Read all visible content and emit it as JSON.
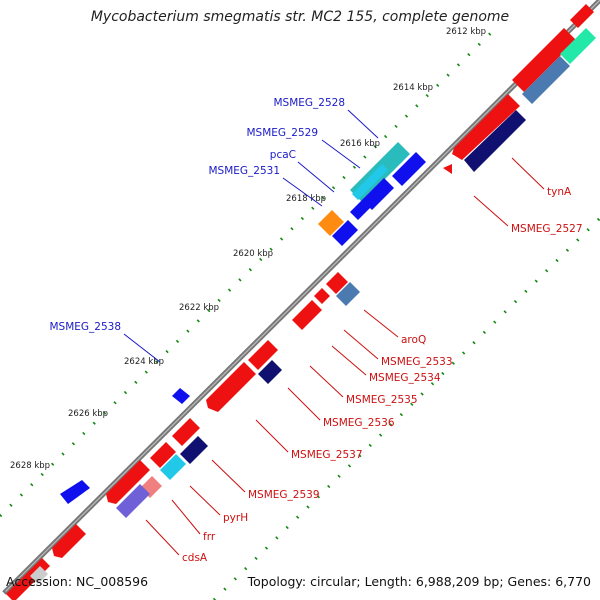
{
  "title": "Mycobacterium smegmatis str. MC2 155, complete genome",
  "accession": "Accession: NC_008596",
  "summary": "Topology: circular; Length: 6,988,209 bp; Genes: 6,770",
  "colors": {
    "backbone": "#7a7a7a",
    "forward_gene": "#ee1111",
    "reverse_gene": "#1010ee",
    "navy": "#101070",
    "steel": "#4a7ab0",
    "cyan": "#22c8e8",
    "teal": "#2abcbc",
    "orange": "#ff8c10",
    "green_tick": "#118811",
    "label_blue": "#1a1ac8",
    "label_red": "#cc1010"
  },
  "scale_ticks": [
    {
      "label": "2612 kbp"
    },
    {
      "label": "2614 kbp"
    },
    {
      "label": "2616 kbp"
    },
    {
      "label": "2618 kbp"
    },
    {
      "label": "2620 kbp"
    },
    {
      "label": "2622 kbp"
    },
    {
      "label": "2624 kbp"
    },
    {
      "label": "2626 kbp"
    },
    {
      "label": "2628 kbp"
    }
  ],
  "gene_labels_blue": [
    {
      "name": "MSMEG_2528"
    },
    {
      "name": "MSMEG_2529"
    },
    {
      "name": "pcaC"
    },
    {
      "name": "MSMEG_2531"
    },
    {
      "name": "MSMEG_2538"
    }
  ],
  "gene_labels_red": [
    {
      "name": "tynA"
    },
    {
      "name": "MSMEG_2527"
    },
    {
      "name": "aroQ"
    },
    {
      "name": "MSMEG_2533"
    },
    {
      "name": "MSMEG_2534"
    },
    {
      "name": "MSMEG_2535"
    },
    {
      "name": "MSMEG_2536"
    },
    {
      "name": "MSMEG_2537"
    },
    {
      "name": "MSMEG_2539"
    },
    {
      "name": "pyrH"
    },
    {
      "name": "frr"
    },
    {
      "name": "cdsA"
    }
  ]
}
